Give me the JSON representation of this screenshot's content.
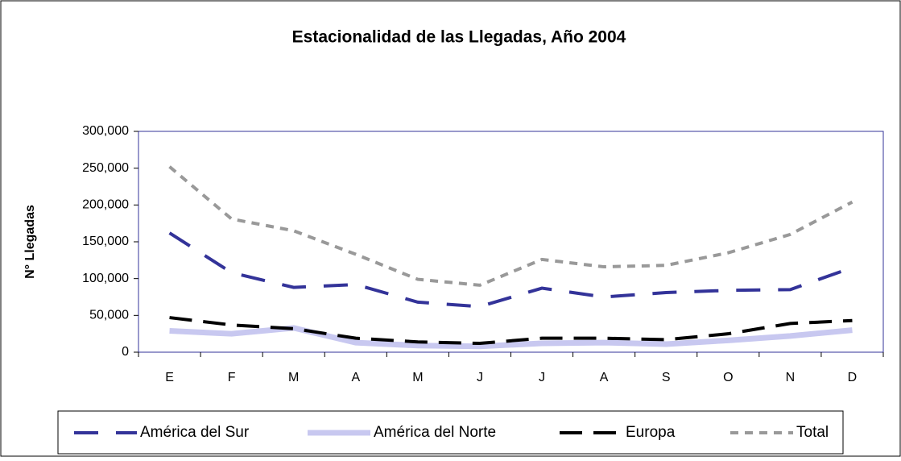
{
  "chart_data": {
    "type": "line",
    "title": "Estacionalidad de las Llegadas, Año 2004",
    "y_label": "N° Llegadas",
    "categories": [
      "E",
      "F",
      "M",
      "A",
      "M",
      "J",
      "J",
      "A",
      "S",
      "O",
      "N",
      "D"
    ],
    "series": [
      {
        "name": "América del Sur",
        "color": "#333399",
        "values": [
          162000,
          108000,
          88000,
          92000,
          68000,
          62000,
          87000,
          75000,
          81000,
          84000,
          85000,
          115000
        ]
      },
      {
        "name": "América del Norte",
        "color": "#c8c8f0",
        "values": [
          29000,
          25000,
          33000,
          13000,
          9000,
          8000,
          12000,
          13000,
          11000,
          16000,
          22000,
          30000
        ]
      },
      {
        "name": "Europa",
        "color": "#000000",
        "values": [
          47000,
          37000,
          32000,
          19000,
          14000,
          12000,
          19000,
          19000,
          17000,
          25000,
          39000,
          43000
        ]
      },
      {
        "name": "Total",
        "color": "#999999",
        "values": [
          252000,
          181000,
          165000,
          133000,
          99000,
          91000,
          126000,
          116000,
          118000,
          135000,
          160000,
          204000
        ]
      }
    ],
    "ylim": [
      0,
      300000
    ],
    "yticks": [
      0,
      {
        "value": 50000,
        "label": "50,000"
      },
      {
        "value": 100000,
        "label": "100,000"
      },
      {
        "value": 150000,
        "label": "150,000"
      },
      {
        "value": 200000,
        "label": "200,000"
      },
      {
        "value": 250000,
        "label": "250,000"
      },
      {
        "value": 300000,
        "label": "300,000"
      }
    ],
    "legend": "bottom"
  }
}
